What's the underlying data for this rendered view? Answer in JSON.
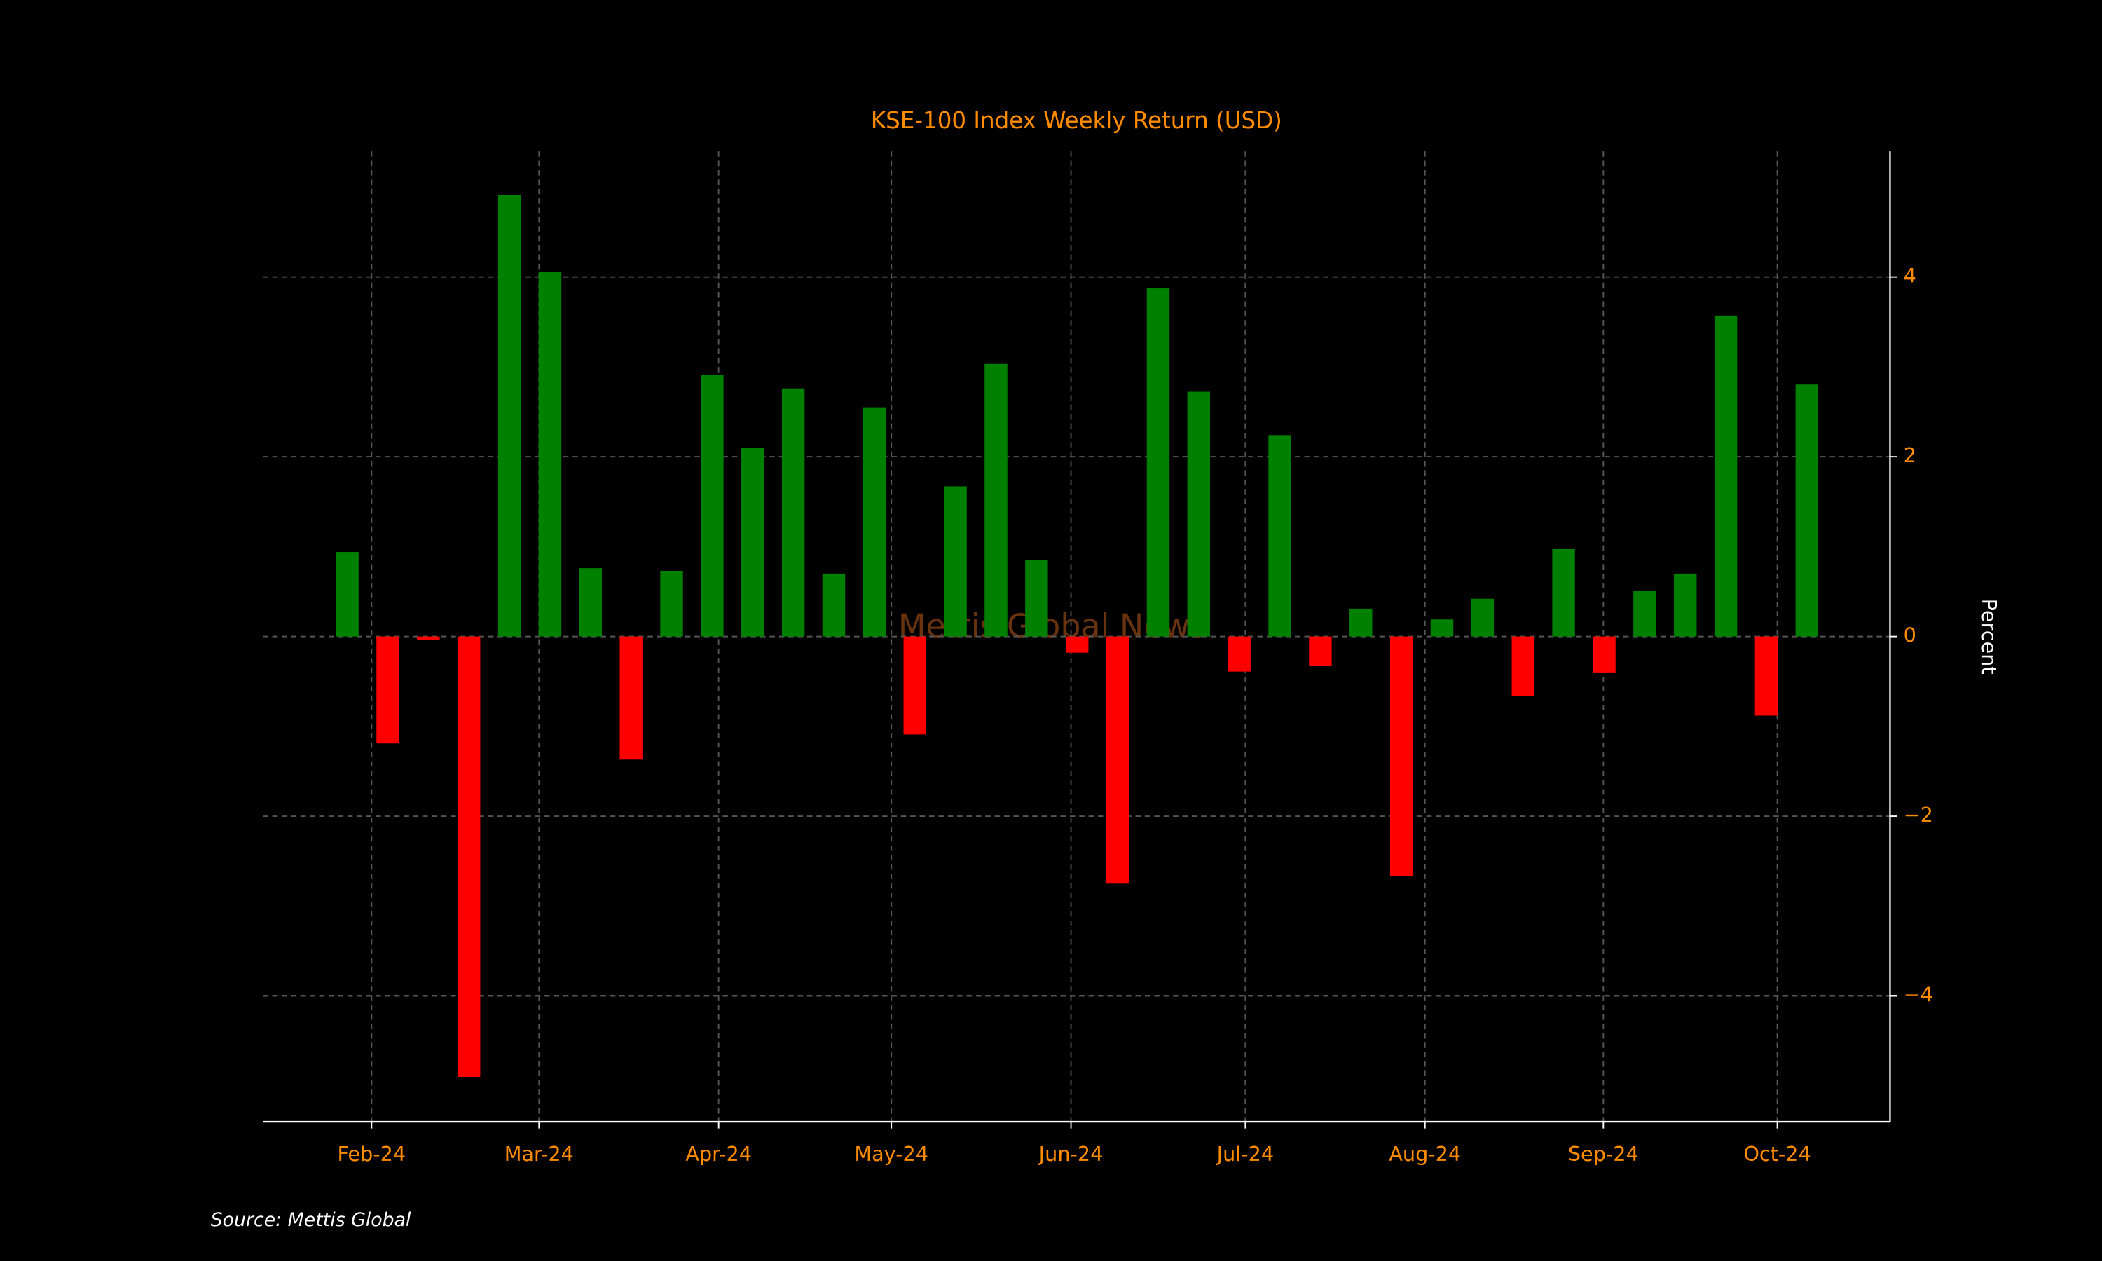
{
  "chart_data": {
    "type": "bar",
    "title": "KSE-100 Index Weekly Return (USD)",
    "ylabel": "Percent",
    "watermark": "Mettis Global News",
    "source": "Source: Mettis Global",
    "x": [
      0,
      1,
      2,
      3,
      4,
      5,
      6,
      7,
      8,
      9,
      10,
      11,
      12,
      13,
      14,
      15,
      16,
      17,
      18,
      19,
      20,
      21,
      22,
      23,
      24,
      25,
      26,
      27,
      28,
      29,
      30,
      31,
      32,
      33,
      34,
      35,
      36
    ],
    "values": [
      0.94,
      -1.19,
      -0.04,
      -4.9,
      4.91,
      4.06,
      0.76,
      -1.37,
      0.73,
      2.91,
      2.1,
      2.76,
      0.7,
      2.55,
      -1.09,
      1.67,
      3.04,
      0.85,
      -0.18,
      -2.75,
      3.88,
      2.73,
      -0.39,
      2.24,
      -0.33,
      0.31,
      -2.67,
      0.19,
      0.42,
      -0.66,
      0.98,
      -0.4,
      0.51,
      0.7,
      3.57,
      -0.88,
      2.81
    ],
    "positive_color": "#008000",
    "negative_color": "#ff0000",
    "xlim": [
      -2.08,
      38.05
    ],
    "xticks": [
      {
        "value": 0.6,
        "label": "Feb-24"
      },
      {
        "value": 4.73,
        "label": "Mar-24"
      },
      {
        "value": 9.16,
        "label": "Apr-24"
      },
      {
        "value": 13.42,
        "label": "May-24"
      },
      {
        "value": 17.85,
        "label": "Jun-24"
      },
      {
        "value": 22.15,
        "label": "Jul-24"
      },
      {
        "value": 26.58,
        "label": "Aug-24"
      },
      {
        "value": 30.98,
        "label": "Sep-24"
      },
      {
        "value": 35.27,
        "label": "Oct-24"
      }
    ],
    "ylim": [
      -5.4,
      5.4
    ],
    "yticks": [
      {
        "value": -4,
        "label": "−4"
      },
      {
        "value": -2,
        "label": "−2"
      },
      0,
      2,
      4
    ],
    "grid": true,
    "y_axis_side": "right"
  }
}
